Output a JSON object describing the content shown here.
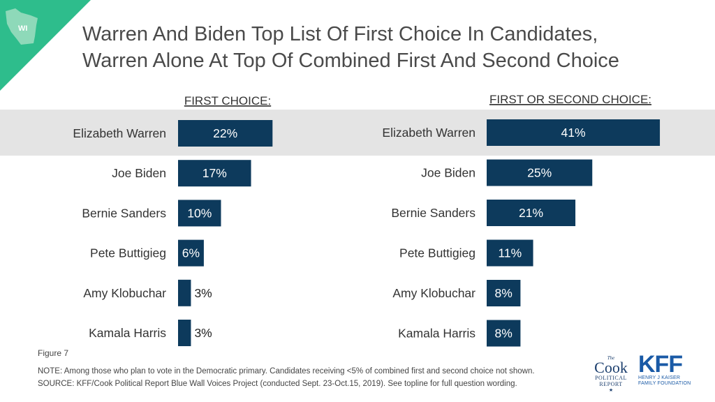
{
  "badge": {
    "state_label": "WI",
    "colors": {
      "corner": "#2ebd8c",
      "state": "#8ed9b9"
    }
  },
  "title": {
    "line1": "Warren And Biden Top List Of First Choice In Candidates,",
    "line2": "Warren Alone At Top Of Combined First And Second Choice"
  },
  "chart_data": [
    {
      "type": "bar",
      "title": "FIRST CHOICE:",
      "orientation": "horizontal",
      "categories": [
        "Elizabeth Warren",
        "Joe Biden",
        "Bernie Sanders",
        "Pete Buttigieg",
        "Amy Klobuchar",
        "Kamala Harris"
      ],
      "values": [
        22,
        17,
        10,
        6,
        3,
        3
      ],
      "value_labels": [
        "22%",
        "17%",
        "10%",
        "6%",
        "3%",
        "3%"
      ],
      "highlighted_category": "Elizabeth Warren",
      "bar_color": "#0d3a5c"
    },
    {
      "type": "bar",
      "title": "FIRST OR SECOND CHOICE:",
      "orientation": "horizontal",
      "categories": [
        "Elizabeth Warren",
        "Joe Biden",
        "Bernie Sanders",
        "Pete Buttigieg",
        "Amy Klobuchar",
        "Kamala Harris"
      ],
      "values": [
        41,
        25,
        21,
        11,
        8,
        8
      ],
      "value_labels": [
        "41%",
        "25%",
        "21%",
        "11%",
        "8%",
        "8%"
      ],
      "highlighted_category": "Elizabeth Warren",
      "bar_color": "#0d3a5c"
    }
  ],
  "figure_label": "Figure 7",
  "note": "NOTE: Among those who plan to vote in the Democratic primary. Candidates receiving <5% of combined first and second choice not shown.",
  "source": "SOURCE: KFF/Cook Political Report Blue Wall Voices Project (conducted Sept. 23-Oct.15, 2019). See topline for full question wording.",
  "logos": {
    "cook": {
      "the": "The",
      "name": "Cook",
      "line2": "POLITICAL",
      "line3": "REPORT",
      "star": "★"
    },
    "kff": {
      "name": "KFF",
      "line1": "HENRY J KAISER",
      "line2": "FAMILY FOUNDATION"
    }
  }
}
